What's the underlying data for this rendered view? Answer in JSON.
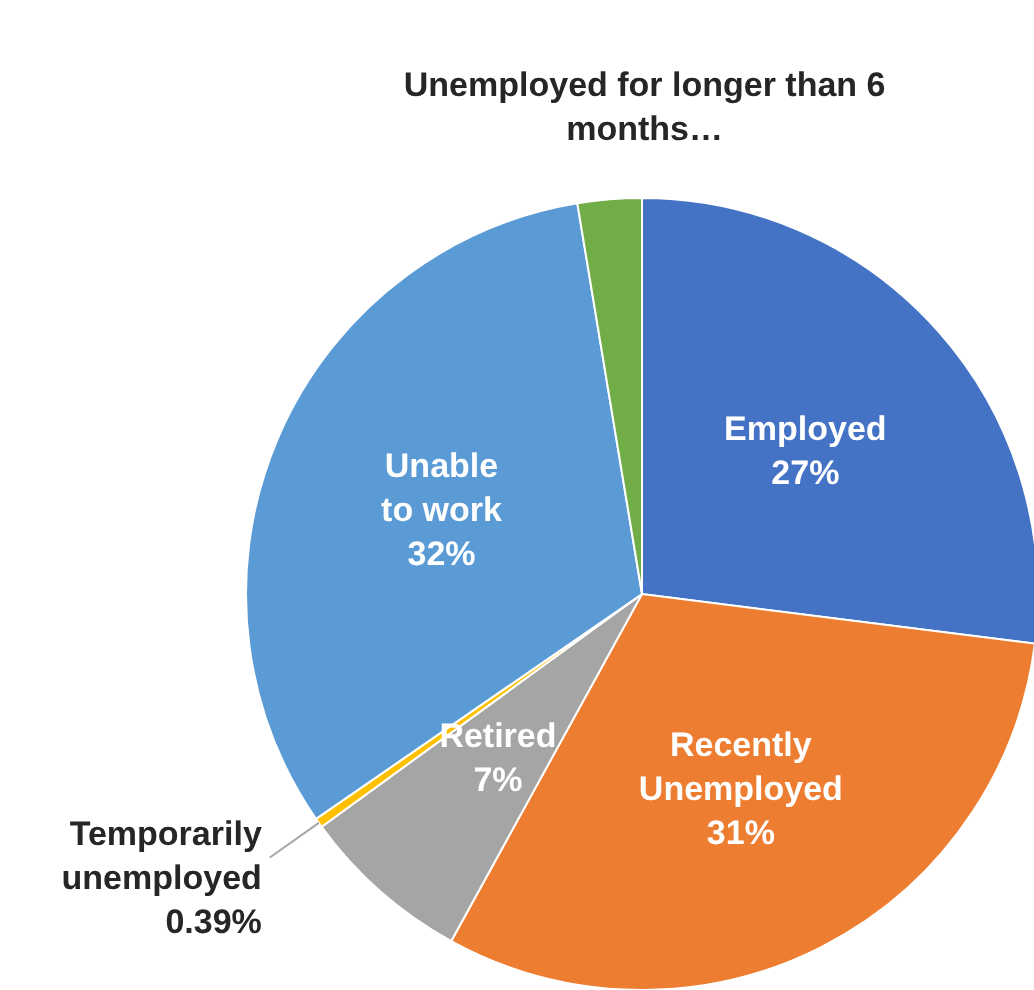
{
  "chart_data": {
    "type": "pie",
    "categories": [
      "Employed",
      "Recently Unemployed",
      "Retired",
      "Temporarily unemployed",
      "Unable to work",
      "Unemployed for longer than 6 months…"
    ],
    "values": [
      27,
      31,
      7,
      0.39,
      32,
      2.61
    ],
    "value_labels": [
      "27%",
      "31%",
      "7%",
      "0.39%",
      "32%",
      null
    ],
    "colors": [
      "#4472c4",
      "#ed7d31",
      "#a5a5a5",
      "#ffc000",
      "#5b9bd5",
      "#70ad47"
    ]
  }
}
